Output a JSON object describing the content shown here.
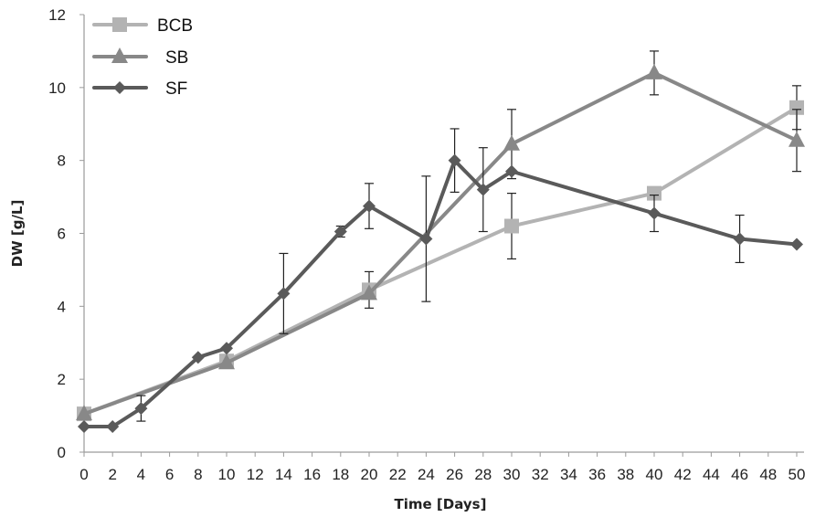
{
  "chart_data": {
    "type": "line",
    "xlabel": "Time [Days]",
    "ylabel": "DW [g/L]",
    "xlim": [
      0,
      50
    ],
    "ylim": [
      0,
      12
    ],
    "x_ticks": [
      0,
      2,
      4,
      6,
      8,
      10,
      12,
      14,
      16,
      18,
      20,
      22,
      24,
      26,
      28,
      30,
      32,
      34,
      36,
      38,
      40,
      42,
      44,
      46,
      48,
      50
    ],
    "y_ticks": [
      0,
      2,
      4,
      6,
      8,
      10,
      12
    ],
    "grid": false,
    "legend_position": "top-left",
    "series": [
      {
        "name": "BCB",
        "color": "#b3b3b3",
        "marker": "square",
        "x": [
          0,
          10,
          20,
          30,
          40,
          50
        ],
        "y": [
          1.05,
          2.5,
          4.45,
          6.2,
          7.1,
          9.45
        ],
        "error": [
          null,
          null,
          0.5,
          0.9,
          null,
          0.6
        ]
      },
      {
        "name": "SB",
        "color": "#888888",
        "marker": "triangle",
        "x": [
          0,
          10,
          20,
          30,
          40,
          50
        ],
        "y": [
          1.05,
          2.45,
          4.35,
          8.45,
          10.4,
          8.55
        ],
        "error": [
          null,
          null,
          null,
          0.95,
          0.6,
          0.85
        ]
      },
      {
        "name": "SF",
        "color": "#5a5a5a",
        "marker": "diamond",
        "x": [
          0,
          2,
          4,
          8,
          10,
          14,
          18,
          20,
          24,
          26,
          28,
          30,
          40,
          46,
          50
        ],
        "y": [
          0.7,
          0.7,
          1.2,
          2.6,
          2.85,
          4.35,
          6.05,
          6.75,
          5.85,
          8.0,
          7.2,
          7.7,
          6.55,
          5.85,
          5.7
        ],
        "error": [
          null,
          null,
          0.35,
          null,
          null,
          1.1,
          0.15,
          0.62,
          1.72,
          0.87,
          1.15,
          null,
          0.5,
          0.65,
          null
        ]
      }
    ]
  }
}
